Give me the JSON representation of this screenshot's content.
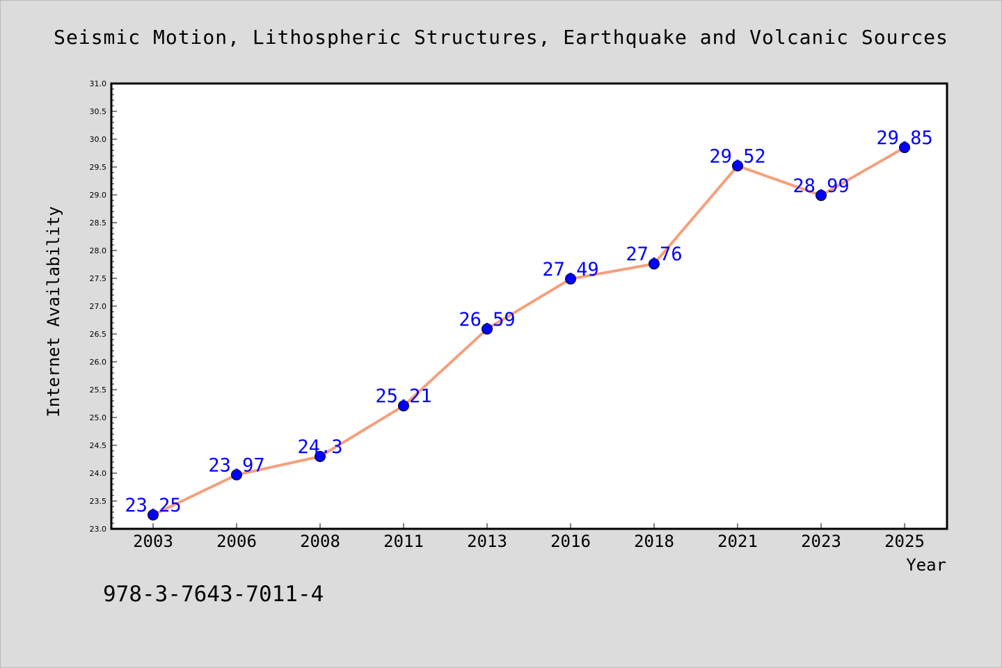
{
  "chart_data": {
    "type": "line",
    "title": "Seismic Motion, Lithospheric Structures, Earthquake and Volcanic Sources",
    "xlabel": "Year",
    "ylabel": "Internet Availability",
    "categories": [
      "2003",
      "2006",
      "2008",
      "2011",
      "2013",
      "2016",
      "2018",
      "2021",
      "2023",
      "2025"
    ],
    "values": [
      23.25,
      23.97,
      24.3,
      25.21,
      26.59,
      27.49,
      27.76,
      29.52,
      28.99,
      29.85
    ],
    "value_labels": [
      "23.25",
      "23.97",
      "24.3",
      "25.21",
      "26.59",
      "27.49",
      "27.76",
      "29.52",
      "28.99",
      "29.85"
    ],
    "ylim": [
      23.0,
      31.0
    ],
    "yticks": [
      "23.0",
      "23.5",
      "24.0",
      "24.5",
      "25.0",
      "25.5",
      "26.0",
      "26.5",
      "27.0",
      "27.5",
      "28.0",
      "28.5",
      "29.0",
      "29.5",
      "30.0",
      "30.5",
      "31.0"
    ],
    "grid": false,
    "line_color": "#f4a07c",
    "marker_color": "#0000ff",
    "label_color": "#0000ff"
  },
  "footer": {
    "isbn": "978-3-7643-7011-4"
  }
}
